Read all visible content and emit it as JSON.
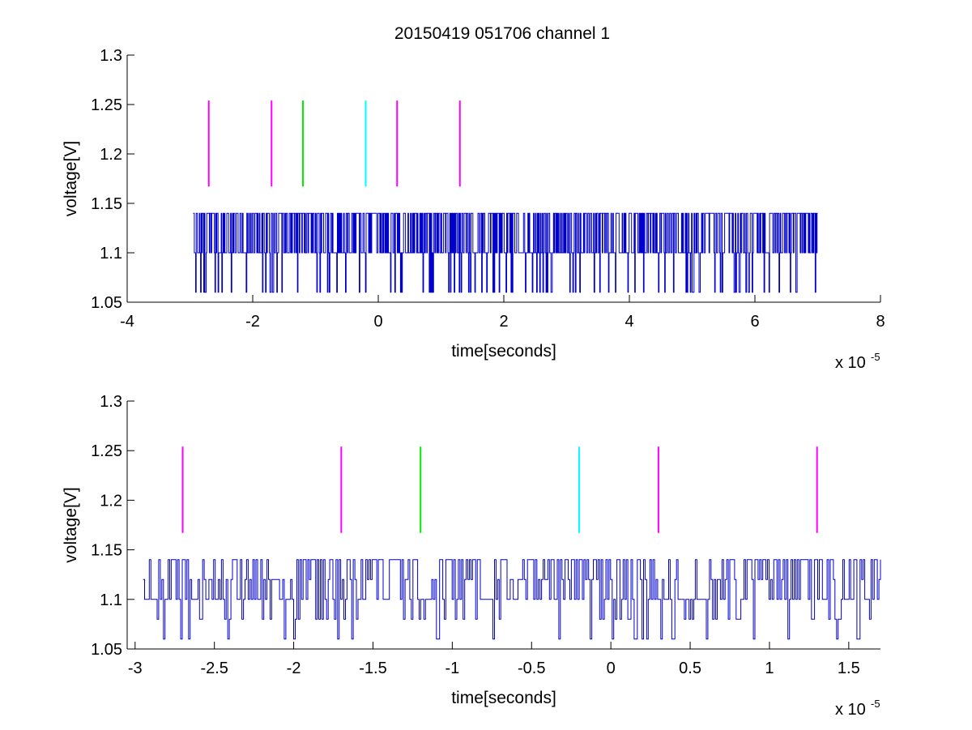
{
  "figure": {
    "title": "20150419 051706 channel 1"
  },
  "chart_data": [
    {
      "type": "line",
      "xlabel": "time[seconds]",
      "ylabel": "voltage[V]",
      "x_exponent_label": "x 10",
      "x_exponent": "-5",
      "xlim": [
        -4,
        8
      ],
      "ylim": [
        1.05,
        1.3
      ],
      "x_ticks": [
        -4,
        -2,
        0,
        2,
        4,
        6,
        8
      ],
      "x_tick_labels": [
        "-4",
        "-2",
        "0",
        "2",
        "4",
        "6",
        "8"
      ],
      "y_ticks": [
        1.05,
        1.1,
        1.15,
        1.2,
        1.25,
        1.3
      ],
      "y_tick_labels": [
        "1.05",
        "1.1",
        "1.15",
        "1.2",
        "1.25",
        "1.3"
      ],
      "grid": false,
      "series": [
        {
          "color": "#0000cc",
          "x_range": [
            -2.95,
            7.0
          ],
          "levels": [
            1.06,
            1.1,
            1.14
          ],
          "baseline": 1.1
        }
      ],
      "markers": [
        {
          "x": -2.7,
          "color": "#ff00ff",
          "ymin": 1.167,
          "ymax": 1.254
        },
        {
          "x": -1.7,
          "color": "#ff00ff",
          "ymin": 1.167,
          "ymax": 1.254
        },
        {
          "x": -1.2,
          "color": "#00ee00",
          "ymin": 1.167,
          "ymax": 1.254
        },
        {
          "x": -0.2,
          "color": "#00ffff",
          "ymin": 1.167,
          "ymax": 1.254
        },
        {
          "x": 0.3,
          "color": "#ff00ff",
          "ymin": 1.167,
          "ymax": 1.254
        },
        {
          "x": 1.3,
          "color": "#ff00ff",
          "ymin": 1.167,
          "ymax": 1.254
        }
      ]
    },
    {
      "type": "line",
      "xlabel": "time[seconds]",
      "ylabel": "voltage[V]",
      "x_exponent_label": "x 10",
      "x_exponent": "-5",
      "xlim": [
        -3.05,
        1.7
      ],
      "ylim": [
        1.05,
        1.3
      ],
      "x_ticks": [
        -3,
        -2.5,
        -2,
        -1.5,
        -1,
        -0.5,
        0,
        0.5,
        1,
        1.5
      ],
      "x_tick_labels": [
        "-3",
        "-2.5",
        "-2",
        "-1.5",
        "-1",
        "-0.5",
        "0",
        "0.5",
        "1",
        "1.5"
      ],
      "y_ticks": [
        1.05,
        1.1,
        1.15,
        1.2,
        1.25,
        1.3
      ],
      "y_tick_labels": [
        "1.05",
        "1.1",
        "1.15",
        "1.2",
        "1.25",
        "1.3"
      ],
      "grid": false,
      "series": [
        {
          "color": "#0000cc",
          "x_range": [
            -2.95,
            1.7
          ],
          "levels": [
            1.06,
            1.08,
            1.1,
            1.12,
            1.14
          ],
          "baseline": 1.1
        }
      ],
      "markers": [
        {
          "x": -2.7,
          "color": "#ff00ff",
          "ymin": 1.167,
          "ymax": 1.254
        },
        {
          "x": -1.7,
          "color": "#ff00ff",
          "ymin": 1.167,
          "ymax": 1.254
        },
        {
          "x": -1.2,
          "color": "#00ee00",
          "ymin": 1.167,
          "ymax": 1.254
        },
        {
          "x": -0.2,
          "color": "#00ffff",
          "ymin": 1.167,
          "ymax": 1.254
        },
        {
          "x": 0.3,
          "color": "#ff00ff",
          "ymin": 1.167,
          "ymax": 1.254
        },
        {
          "x": 1.3,
          "color": "#ff00ff",
          "ymin": 1.167,
          "ymax": 1.254
        }
      ]
    }
  ]
}
